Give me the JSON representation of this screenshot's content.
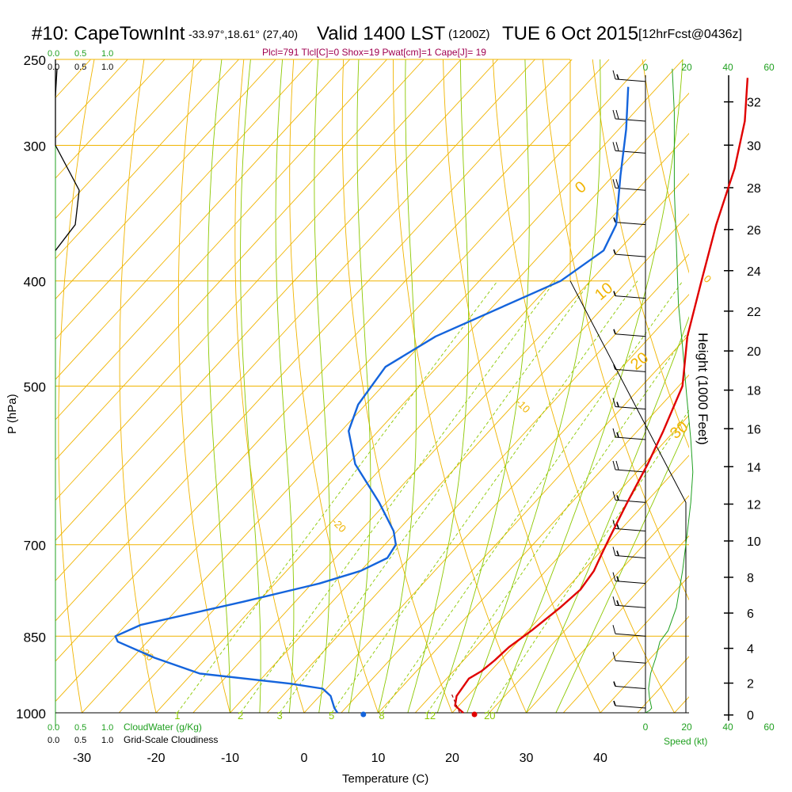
{
  "header": {
    "station": "#10: CapeTownInt",
    "coords": "-33.97°,18.61° (27,40)",
    "valid": "Valid 1400 LST",
    "zulu": "(1200Z)",
    "date": "TUE 6 Oct 2015",
    "forecast": "[12hrFcst@0436z]",
    "stats": "Plcl=791 Tlcl[C]=0 Shox=19 Pwat[cm]=1 Cape[J]= 19"
  },
  "legend": {
    "cloudwater_label": "CloudWater (g/Kg)",
    "cloudiness_label": "Grid-Scale Cloudiness",
    "scale_ticks": [
      "0.0",
      "0.5",
      "1.0"
    ],
    "speed_label": "Speed (kt)"
  },
  "colors": {
    "temperature": "#e00000",
    "dewpoint": "#1464dc",
    "isotherm": "#f0b400",
    "dry_adiabat": "#8cc800",
    "mixing_ratio": "#8cc800",
    "speed_axis": "#20a020",
    "stats_text": "#a00050"
  },
  "chart_data": {
    "type": "line",
    "xlabel": "Temperature (C)",
    "ylabel": "P (hPa)",
    "y2label": "Height (1000 Feet)",
    "x_ticks": [
      -30,
      -20,
      -10,
      0,
      10,
      20,
      30,
      40
    ],
    "p_ticks": [
      250,
      300,
      400,
      500,
      700,
      850,
      1000
    ],
    "height_ticks": [
      0,
      2,
      4,
      6,
      8,
      10,
      12,
      14,
      16,
      18,
      20,
      22,
      24,
      26,
      28,
      30,
      32
    ],
    "speed_ticks": [
      0,
      20,
      40,
      60
    ],
    "isotherm_labels": [
      {
        "text": "10",
        "T": 10,
        "p": 300
      },
      {
        "text": "0",
        "T": 0,
        "p": 400
      },
      {
        "text": "-10",
        "T": -10,
        "p": 520
      },
      {
        "text": "-20",
        "T": -20,
        "p": 670
      },
      {
        "text": "-30",
        "T": -30,
        "p": 880
      }
    ],
    "adiabat_labels": [
      {
        "text": "0",
        "x": 733,
        "y": 245
      },
      {
        "text": "10",
        "x": 758,
        "y": 380
      },
      {
        "text": "20",
        "x": 803,
        "y": 468
      },
      {
        "text": "30",
        "x": 853,
        "y": 555
      }
    ],
    "mixing_labels": [
      "1",
      "2",
      "3",
      "5",
      "8",
      "12",
      "20"
    ],
    "series": [
      {
        "name": "Temperature",
        "points": [
          [
            21.5,
            1000
          ],
          [
            19.5,
            985
          ],
          [
            18.5,
            965
          ],
          [
            18.0,
            930
          ],
          [
            18.8,
            915
          ],
          [
            19.2,
            895
          ],
          [
            19.5,
            870
          ],
          [
            20.5,
            840
          ],
          [
            21.5,
            800
          ],
          [
            22.0,
            770
          ],
          [
            21.5,
            740
          ],
          [
            20.5,
            715
          ],
          [
            19.5,
            690
          ],
          [
            17.5,
            640
          ],
          [
            15.5,
            590
          ],
          [
            13.5,
            550
          ],
          [
            10.5,
            500
          ],
          [
            5.0,
            450
          ],
          [
            0.0,
            400
          ],
          [
            -5.0,
            355
          ],
          [
            -9.5,
            315
          ],
          [
            -14.0,
            285
          ],
          [
            -19.0,
            260
          ]
        ]
      },
      {
        "name": "Dewpoint",
        "points": [
          [
            4.5,
            1000
          ],
          [
            3.5,
            990
          ],
          [
            1.5,
            965
          ],
          [
            -0.5,
            950
          ],
          [
            -5.5,
            940
          ],
          [
            -19.0,
            920
          ],
          [
            -27.0,
            890
          ],
          [
            -34.0,
            860
          ],
          [
            -35.0,
            850
          ],
          [
            -33.0,
            830
          ],
          [
            -22.0,
            790
          ],
          [
            -14.0,
            760
          ],
          [
            -10.0,
            740
          ],
          [
            -8.0,
            720
          ],
          [
            -8.5,
            700
          ],
          [
            -10.5,
            680
          ],
          [
            -16.0,
            640
          ],
          [
            -24.0,
            590
          ],
          [
            -29.0,
            550
          ],
          [
            -31.0,
            520
          ],
          [
            -32.0,
            480
          ],
          [
            -29.0,
            450
          ],
          [
            -19.0,
            400
          ],
          [
            -17.0,
            375
          ],
          [
            -18.5,
            355
          ],
          [
            -24.0,
            320
          ],
          [
            -29.0,
            290
          ],
          [
            -34.0,
            265
          ]
        ]
      }
    ],
    "sfc_temperature": 23.0,
    "sfc_dewpoint": 8.0,
    "parcel_dashed": [
      [
        21.0,
        1000
      ],
      [
        17.5,
        960
      ]
    ],
    "cloudiness_profile": [
      [
        0.0,
        250
      ],
      [
        0.0,
        300
      ],
      [
        0.3,
        330
      ],
      [
        0.25,
        355
      ],
      [
        0.0,
        375
      ]
    ],
    "speed_profile": [
      [
        0,
        1000
      ],
      [
        2,
        995
      ],
      [
        3,
        990
      ],
      [
        2,
        970
      ],
      [
        1.5,
        950
      ],
      [
        2.5,
        920
      ],
      [
        5,
        890
      ],
      [
        7,
        860
      ],
      [
        11,
        840
      ],
      [
        15,
        800
      ],
      [
        18,
        740
      ],
      [
        20,
        690
      ],
      [
        22,
        640
      ],
      [
        23,
        600
      ],
      [
        22,
        560
      ],
      [
        20,
        510
      ],
      [
        18,
        460
      ],
      [
        16,
        420
      ],
      [
        15,
        370
      ],
      [
        14,
        330
      ],
      [
        14,
        280
      ],
      [
        13,
        255
      ]
    ],
    "wind_barbs": [
      {
        "p": 262,
        "speed": 15
      },
      {
        "p": 285,
        "speed": 20
      },
      {
        "p": 305,
        "speed": 20
      },
      {
        "p": 330,
        "speed": 20
      },
      {
        "p": 355,
        "speed": 5
      },
      {
        "p": 380,
        "speed": 5
      },
      {
        "p": 415,
        "speed": 5
      },
      {
        "p": 450,
        "speed": 5
      },
      {
        "p": 485,
        "speed": 5
      },
      {
        "p": 525,
        "speed": 15
      },
      {
        "p": 560,
        "speed": 15
      },
      {
        "p": 600,
        "speed": 20
      },
      {
        "p": 640,
        "speed": 15
      },
      {
        "p": 680,
        "speed": 15
      },
      {
        "p": 720,
        "speed": 15
      },
      {
        "p": 760,
        "speed": 15
      },
      {
        "p": 800,
        "speed": 15
      },
      {
        "p": 850,
        "speed": 10
      },
      {
        "p": 900,
        "speed": 10
      },
      {
        "p": 950,
        "speed": 5
      },
      {
        "p": 990,
        "speed": 5
      }
    ]
  }
}
